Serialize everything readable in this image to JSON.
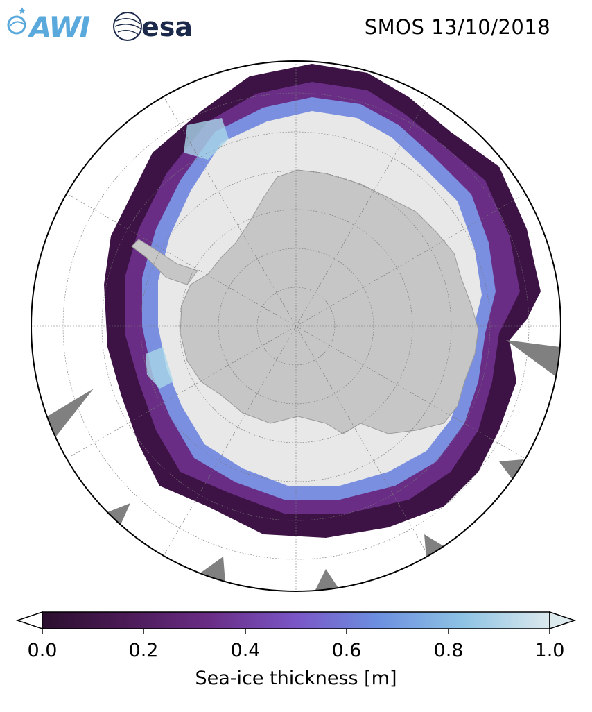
{
  "header": {
    "title": "SMOS 13/10/2018",
    "logos": [
      {
        "name": "awi-logo",
        "text": "AWI",
        "color": "#5aa9dc"
      },
      {
        "name": "esa-logo",
        "text": "esa",
        "color": "#1b2a4a"
      }
    ]
  },
  "map": {
    "projection": "south-polar-stereographic",
    "land_color": "#c6c6c6",
    "ocean_color": "#ffffff",
    "thick_ice_color": "#e8e8e8",
    "graticule": true
  },
  "colorbar": {
    "label": "Sea-ice thickness [m]",
    "min": 0.0,
    "max": 1.0,
    "extend": "both",
    "ticks": [
      "0.0",
      "0.2",
      "0.4",
      "0.6",
      "0.8",
      "1.0"
    ],
    "colors": [
      "#2b0f2e",
      "#4a1a55",
      "#6a2d86",
      "#7a56c6",
      "#6c8fe0",
      "#8ec3e4",
      "#dce9ed"
    ]
  }
}
